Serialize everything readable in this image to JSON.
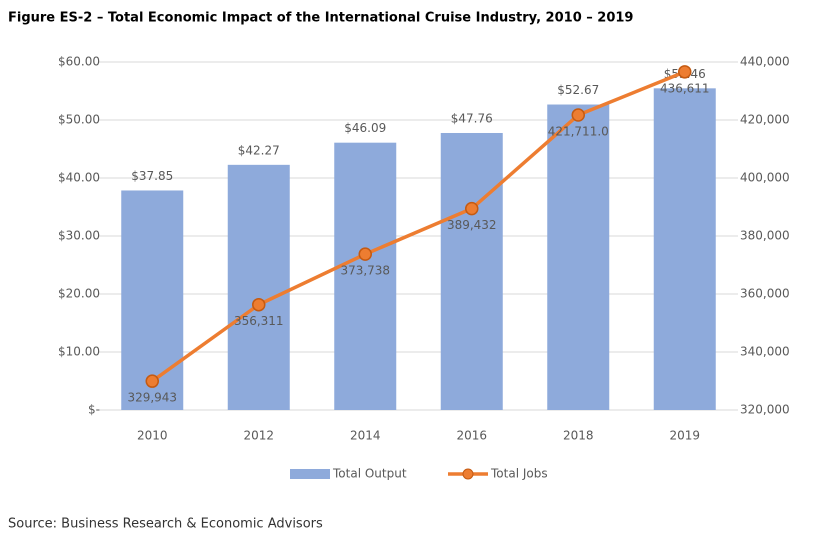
{
  "chart_data": {
    "type": "combo",
    "title": "Figure ES-2 – Total Economic Impact of the International Cruise Industry, 2010 – 2019",
    "source": "Source: Business Research & Economic Advisors",
    "categories": [
      "2010",
      "2012",
      "2014",
      "2016",
      "2018",
      "2019"
    ],
    "series": [
      {
        "name": "Total Output",
        "type": "bar",
        "color": "#8eaadb",
        "values": [
          37.85,
          42.27,
          46.09,
          47.76,
          52.67,
          55.46
        ],
        "value_labels": [
          "$37.85",
          "$42.27",
          "$46.09",
          "$47.76",
          "$52.67",
          "$55.46"
        ]
      },
      {
        "name": "Total Jobs",
        "type": "line",
        "axis": "y2",
        "color": "#ed7d31",
        "values": [
          329943,
          356311,
          373738,
          389432,
          421711,
          436611
        ],
        "value_labels": [
          "329,943",
          "356,311",
          "373,738",
          "389,432",
          "421,711.0",
          "436,611"
        ]
      }
    ],
    "ylim": [
      0,
      60
    ],
    "yticks": [
      {
        "value": 0,
        "label": "$-"
      },
      {
        "value": 10,
        "label": "$10.00"
      },
      {
        "value": 20,
        "label": "$20.00"
      },
      {
        "value": 30,
        "label": "$30.00"
      },
      {
        "value": 40,
        "label": "$40.00"
      },
      {
        "value": 50,
        "label": "$50.00"
      },
      {
        "value": 60,
        "label": "$60.00"
      }
    ],
    "y2lim": [
      320000,
      440000
    ],
    "y2ticks": [
      {
        "value": 320000,
        "label": "320,000"
      },
      {
        "value": 340000,
        "label": "340,000"
      },
      {
        "value": 360000,
        "label": "360,000"
      },
      {
        "value": 380000,
        "label": "380,000"
      },
      {
        "value": 400000,
        "label": "400,000"
      },
      {
        "value": 420000,
        "label": "420,000"
      },
      {
        "value": 440000,
        "label": "440,000"
      }
    ],
    "grid": true,
    "legend": "bottom"
  }
}
